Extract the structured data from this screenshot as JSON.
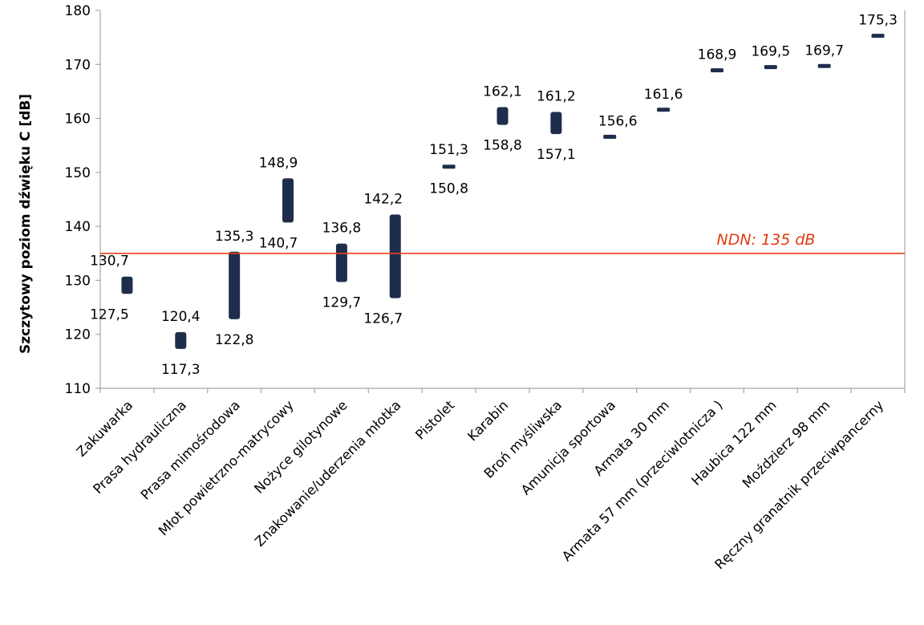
{
  "chart_data": {
    "type": "range-bar",
    "title": "",
    "xlabel": "",
    "ylabel": "Szczytowy poziom dźwięku C [dB]",
    "ylim": [
      110,
      180
    ],
    "yticks": [
      110,
      120,
      130,
      140,
      150,
      160,
      170,
      180
    ],
    "grid": false,
    "categories": [
      "Zakuwarka",
      "Prasa hydrauliczna",
      "Prasa mimośrodowa",
      "Młot powietrzno-matrycowy",
      "Nożyce gilotynowe",
      "Znakowanie/uderzenia młotka",
      "Pistolet",
      "Karabin",
      "Broń myśliwska",
      "Amunicja sportowa",
      "Armata 30 mm",
      "Armata 57 mm (przeciwlotnicza )",
      "Haubica 122 mm",
      "Moździerz 98 mm",
      "Ręczny granatnik przeciwpancerny"
    ],
    "series": [
      {
        "low": [
          127.5,
          117.3,
          122.8,
          140.7,
          129.7,
          126.7,
          150.8,
          158.8,
          157.1,
          156.6,
          161.6,
          168.9,
          169.5,
          169.7,
          175.3
        ],
        "high": [
          130.7,
          120.4,
          135.3,
          148.9,
          136.8,
          142.2,
          151.3,
          162.1,
          161.2,
          156.6,
          161.6,
          168.9,
          169.5,
          169.7,
          175.3
        ],
        "low_labels": [
          "127,5",
          "117,3",
          "122,8",
          "140,7",
          "129,7",
          "126,7",
          "150,8",
          "158,8",
          "157,1",
          "",
          "",
          "",
          "",
          "",
          ""
        ],
        "high_labels": [
          "130,7",
          "120,4",
          "135,3",
          "148,9",
          "136,8",
          "142,2",
          "151,3",
          "162,1",
          "161,2",
          "156,6",
          "161,6",
          "168,9",
          "169,5",
          "169,7",
          "175,3"
        ]
      }
    ],
    "reference_line": {
      "value": 135,
      "label": "NDN: 135 dB"
    },
    "colors": {
      "bar": "#1f2d4c",
      "reference": "#e8431a",
      "axis": "#a6a6a6"
    }
  }
}
